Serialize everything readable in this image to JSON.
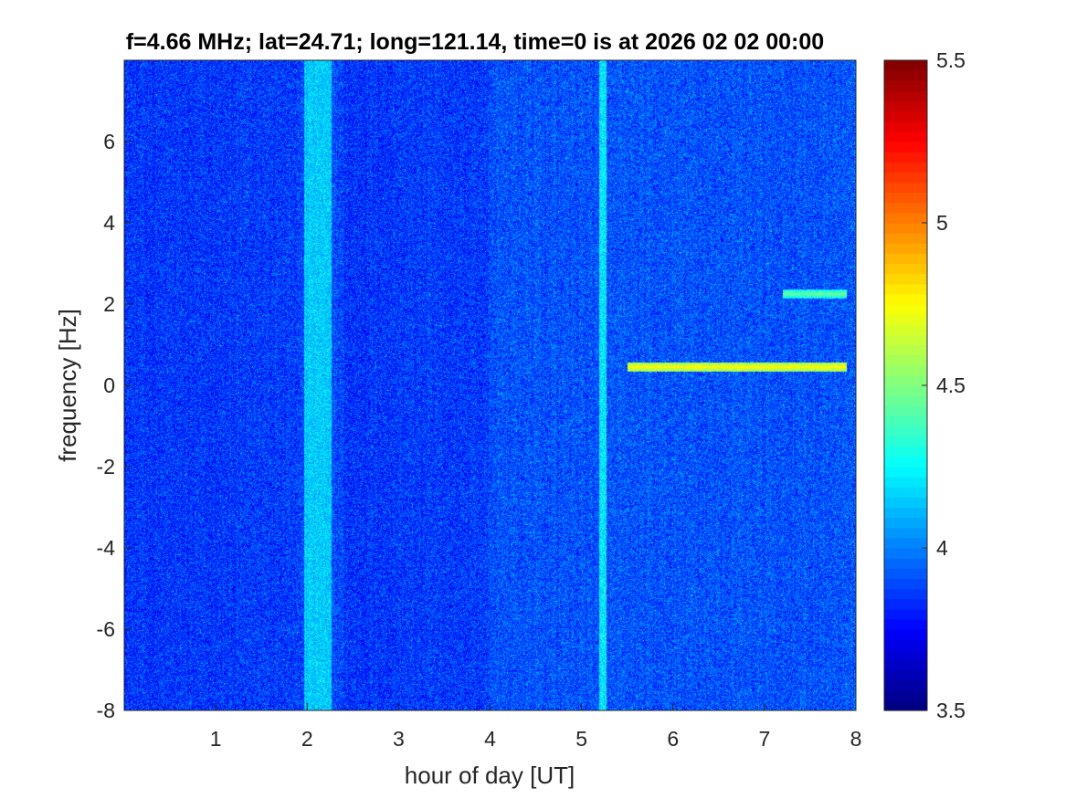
{
  "chart_data": {
    "type": "heatmap",
    "title": "f=4.66 MHz;  lat=24.71; long=121.14, time=0 is at 2026 02 02 00:00",
    "xlabel": "hour of day [UT]",
    "ylabel": "frequency [Hz]",
    "xlim": [
      0,
      8
    ],
    "ylim": [
      -8,
      8
    ],
    "xticks": [
      1,
      2,
      3,
      4,
      5,
      6,
      7,
      8
    ],
    "xtick_labels": [
      "1",
      "2",
      "3",
      "4",
      "5",
      "6",
      "7",
      "8"
    ],
    "yticks": [
      -8,
      -6,
      -4,
      -2,
      0,
      2,
      4,
      6
    ],
    "ytick_labels": [
      "-8",
      "-6",
      "-4",
      "-2",
      "0",
      "2",
      "4",
      "6"
    ],
    "colorbar": {
      "limits": [
        3.5,
        5.5
      ],
      "ticks": [
        3.5,
        4,
        4.5,
        5,
        5.5
      ],
      "tick_labels": [
        "3.5",
        "4",
        "4.5",
        "5",
        "5.5"
      ],
      "colormap": "jet"
    },
    "background_level": 3.85,
    "features": [
      {
        "name": "broadband band",
        "x_start": 1.97,
        "x_end": 2.27,
        "level": 4.15
      },
      {
        "name": "narrow broadband line",
        "x_start": 5.19,
        "x_end": 5.27,
        "level": 4.2
      },
      {
        "name": "doppler trace",
        "x_start": 5.5,
        "x_end": 7.9,
        "y": 0.45,
        "level": 4.75
      },
      {
        "name": "doppler trace",
        "x_start": 7.2,
        "x_end": 7.9,
        "y": 2.25,
        "level": 4.45
      }
    ]
  }
}
